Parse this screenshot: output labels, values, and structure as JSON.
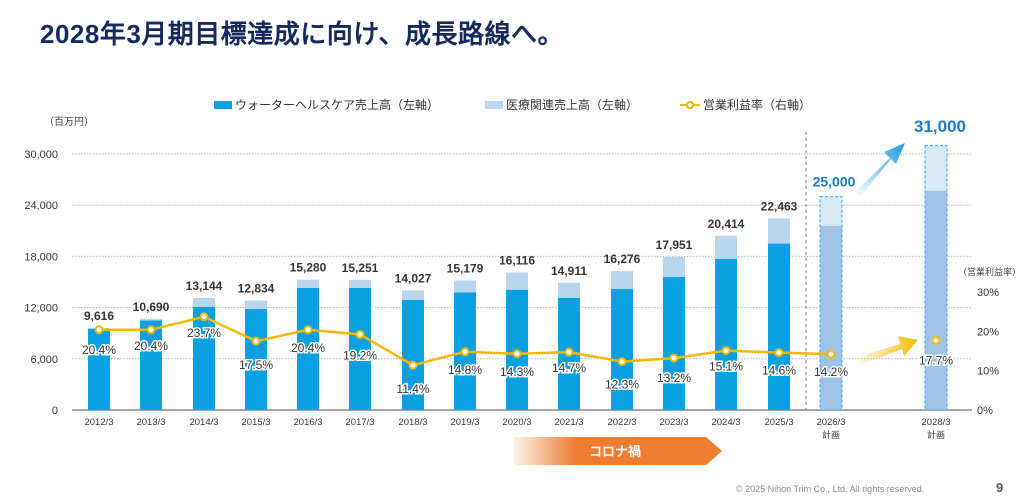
{
  "page": {
    "title": "2028年3月期目標達成に向け、成長路線へ。",
    "footer": "© 2025 Nihon Trim Co., Ltd. All rights reserved.",
    "page_number": "9"
  },
  "legend": {
    "items": [
      {
        "label": "ウォーターヘルスケア売上高（左軸）",
        "color": "#0aa0e2",
        "kind": "bar"
      },
      {
        "label": "医療関連売上高（左軸）",
        "color": "#bad6ef",
        "kind": "bar"
      },
      {
        "label": "営業利益率（右軸）",
        "color": "#f5b800",
        "kind": "line"
      }
    ]
  },
  "colors": {
    "water": "#0aa0e2",
    "medical": "#bad6ef",
    "plan_water": "#9ec3e6",
    "plan_medical": "#d9e8f6",
    "margin_line": "#f5b800",
    "total_label": "#333333",
    "plan_label": "#1a7ac8",
    "corona": "#ed7d31"
  },
  "chart_data": {
    "type": "bar",
    "title": "",
    "xlabel": "",
    "ylabel": "（百万円）",
    "ylabel_right": "（営業利益率）",
    "ylim": [
      0,
      30000
    ],
    "yticks": [
      0,
      6000,
      12000,
      18000,
      24000,
      30000
    ],
    "ytick_labels": [
      "0",
      "6,000",
      "12,000",
      "18,000",
      "24,000",
      "30,000"
    ],
    "ylim_right": [
      0,
      0.3
    ],
    "yticks_right_labels": [
      "0%",
      "10%",
      "20%",
      "30%"
    ],
    "grid": true,
    "legend_position": "top",
    "categories": [
      "2012/3",
      "2013/3",
      "2014/3",
      "2015/3",
      "2016/3",
      "2017/3",
      "2018/3",
      "2019/3",
      "2020/3",
      "2021/3",
      "2022/3",
      "2023/3",
      "2024/3",
      "2025/3",
      "2026/3",
      "2028/3"
    ],
    "category_sublabels": [
      "",
      "",
      "",
      "",
      "",
      "",
      "",
      "",
      "",
      "",
      "",
      "",
      "",
      "",
      "計画",
      "計画"
    ],
    "is_plan": [
      false,
      false,
      false,
      false,
      false,
      false,
      false,
      false,
      false,
      false,
      false,
      false,
      false,
      false,
      true,
      true
    ],
    "totals": [
      9616,
      10690,
      13144,
      12834,
      15280,
      15251,
      14027,
      15179,
      16116,
      14911,
      16276,
      17951,
      20414,
      22463,
      25000,
      31000
    ],
    "total_labels": [
      "9,616",
      "10,690",
      "13,144",
      "12,834",
      "15,280",
      "15,251",
      "14,027",
      "15,179",
      "16,116",
      "14,911",
      "16,276",
      "17,951",
      "20,414",
      "22,463",
      "25,000",
      "31,000"
    ],
    "series": [
      {
        "name": "ウォーターヘルスケア売上高（左軸）",
        "axis": "left",
        "type": "bar",
        "values": [
          9500,
          10500,
          12100,
          11850,
          14300,
          14300,
          12900,
          13800,
          14100,
          13150,
          14200,
          15600,
          17700,
          19500,
          21600,
          25700
        ]
      },
      {
        "name": "医療関連売上高（左軸）",
        "axis": "left",
        "type": "bar",
        "values": [
          116,
          190,
          1044,
          984,
          980,
          951,
          1127,
          1379,
          2016,
          1761,
          2076,
          2351,
          2714,
          2963,
          3400,
          5300
        ]
      },
      {
        "name": "営業利益率（右軸）",
        "axis": "right",
        "type": "line",
        "values": [
          20.4,
          20.4,
          23.7,
          17.5,
          20.4,
          19.2,
          11.4,
          14.8,
          14.3,
          14.7,
          12.3,
          13.2,
          15.1,
          14.6,
          14.2,
          17.7
        ],
        "labels": [
          "20.4%",
          "20.4%",
          "23.7%",
          "17.5%",
          "20.4%",
          "19.2%",
          "11.4%",
          "14.8%",
          "14.3%",
          "14.7%",
          "12.3%",
          "13.2%",
          "15.1%",
          "14.6%",
          "14.2%",
          "17.7%"
        ]
      }
    ],
    "annotations": [
      {
        "text": "コロナ禍",
        "from": "2020/3",
        "to": "2023/3"
      }
    ]
  }
}
